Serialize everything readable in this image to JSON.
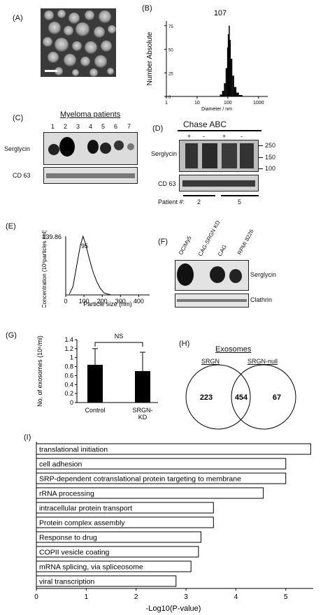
{
  "panels": {
    "A": {
      "label": "(A)"
    },
    "B": {
      "label": "(B)"
    },
    "C": {
      "label": "(C)",
      "title": "Myeloma patients",
      "lanes": [
        "1",
        "2",
        "3",
        "4",
        "5",
        "6",
        "7"
      ],
      "row1": "Serglycin",
      "row2": "CD 63"
    },
    "D": {
      "label": "(D)",
      "title": "Chase ABC",
      "signs": [
        "+",
        "-",
        "+",
        "-"
      ],
      "markers": [
        "250",
        "150",
        "100"
      ],
      "row1": "Serglycin",
      "row2": "CD 63",
      "patient_label": "Patient #:",
      "patients": [
        "2",
        "5"
      ]
    },
    "E": {
      "label": "(E)"
    },
    "F": {
      "label": "(F)",
      "lanes": [
        "OCIMy5",
        "CAG-SRGN KD",
        "CAG",
        "RPMI 8226"
      ],
      "row1": "Serglycin",
      "row2": "Clathrin"
    },
    "G": {
      "label": "(G)",
      "ns": "NS"
    },
    "H": {
      "label": "(H)",
      "title": "Exosomes",
      "left_set": "SRGN",
      "right_set": "SRGN-null",
      "left_only": "223",
      "both": "454",
      "right_only": "67"
    },
    "I": {
      "label": "(I)"
    }
  },
  "chart_data": [
    {
      "panel": "B",
      "type": "area",
      "peak_label": "107",
      "xlabel": "Diameter / nm",
      "ylabel": "Number Absolute",
      "x_scale": "log",
      "xlim": [
        1,
        2000
      ],
      "xticks": [
        "1",
        "10",
        "100",
        "1000"
      ],
      "ylim": [
        0,
        80
      ],
      "yticks": [
        "0",
        "25",
        "50",
        "75"
      ],
      "x": [
        55,
        65,
        75,
        85,
        95,
        100,
        107,
        115,
        125,
        140,
        160,
        190,
        230,
        300
      ],
      "y": [
        2,
        6,
        14,
        30,
        52,
        66,
        75,
        60,
        40,
        22,
        10,
        4,
        1.5,
        0
      ]
    },
    {
      "panel": "E",
      "type": "line",
      "peak_label": "95",
      "ymax_label": "139.86",
      "xlabel": "Particle size (nm)",
      "ylabel": "Concentration (10⁶particles /ml)",
      "xlim": [
        0,
        460
      ],
      "xticks": [
        "0",
        "100",
        "200",
        "300",
        "400"
      ],
      "ylim": [
        0,
        140
      ],
      "x": [
        20,
        40,
        60,
        80,
        95,
        110,
        130,
        150,
        170,
        190,
        210,
        230,
        250
      ],
      "y": [
        2,
        20,
        70,
        118,
        139.86,
        120,
        85,
        55,
        32,
        15,
        5,
        2,
        0
      ]
    },
    {
      "panel": "G",
      "type": "bar",
      "categories": [
        "Control",
        "SRGN-KD"
      ],
      "values": [
        0.84,
        0.7
      ],
      "errors": [
        0.36,
        0.42
      ],
      "ylabel": "No. of exosomes (10⁶/ml)",
      "ylim": [
        0,
        1.4
      ],
      "yticks": [
        "0",
        "0.2",
        "0.4",
        "0.6",
        "0.8",
        "1",
        "1.2",
        "1.4"
      ]
    },
    {
      "panel": "I",
      "type": "bar",
      "orientation": "horizontal",
      "categories": [
        "translational initiation",
        "cell adhesion",
        "SRP-dependent cotranslational protein targeting to membrane",
        "rRNA processing",
        "intracellular protein transport",
        "Protein complex assembly",
        "Response to drug",
        "COPII vesicle coating",
        "mRNA splicing, via spliceosome",
        "viral transcription"
      ],
      "values": [
        5.5,
        5.0,
        5.0,
        4.55,
        3.55,
        3.55,
        3.3,
        3.25,
        3.1,
        2.8
      ],
      "xlabel": "-Log10(P-value)",
      "xlim": [
        0,
        5.55
      ],
      "xticks": [
        "0",
        "1",
        "2",
        "3",
        "4",
        "5"
      ]
    }
  ]
}
